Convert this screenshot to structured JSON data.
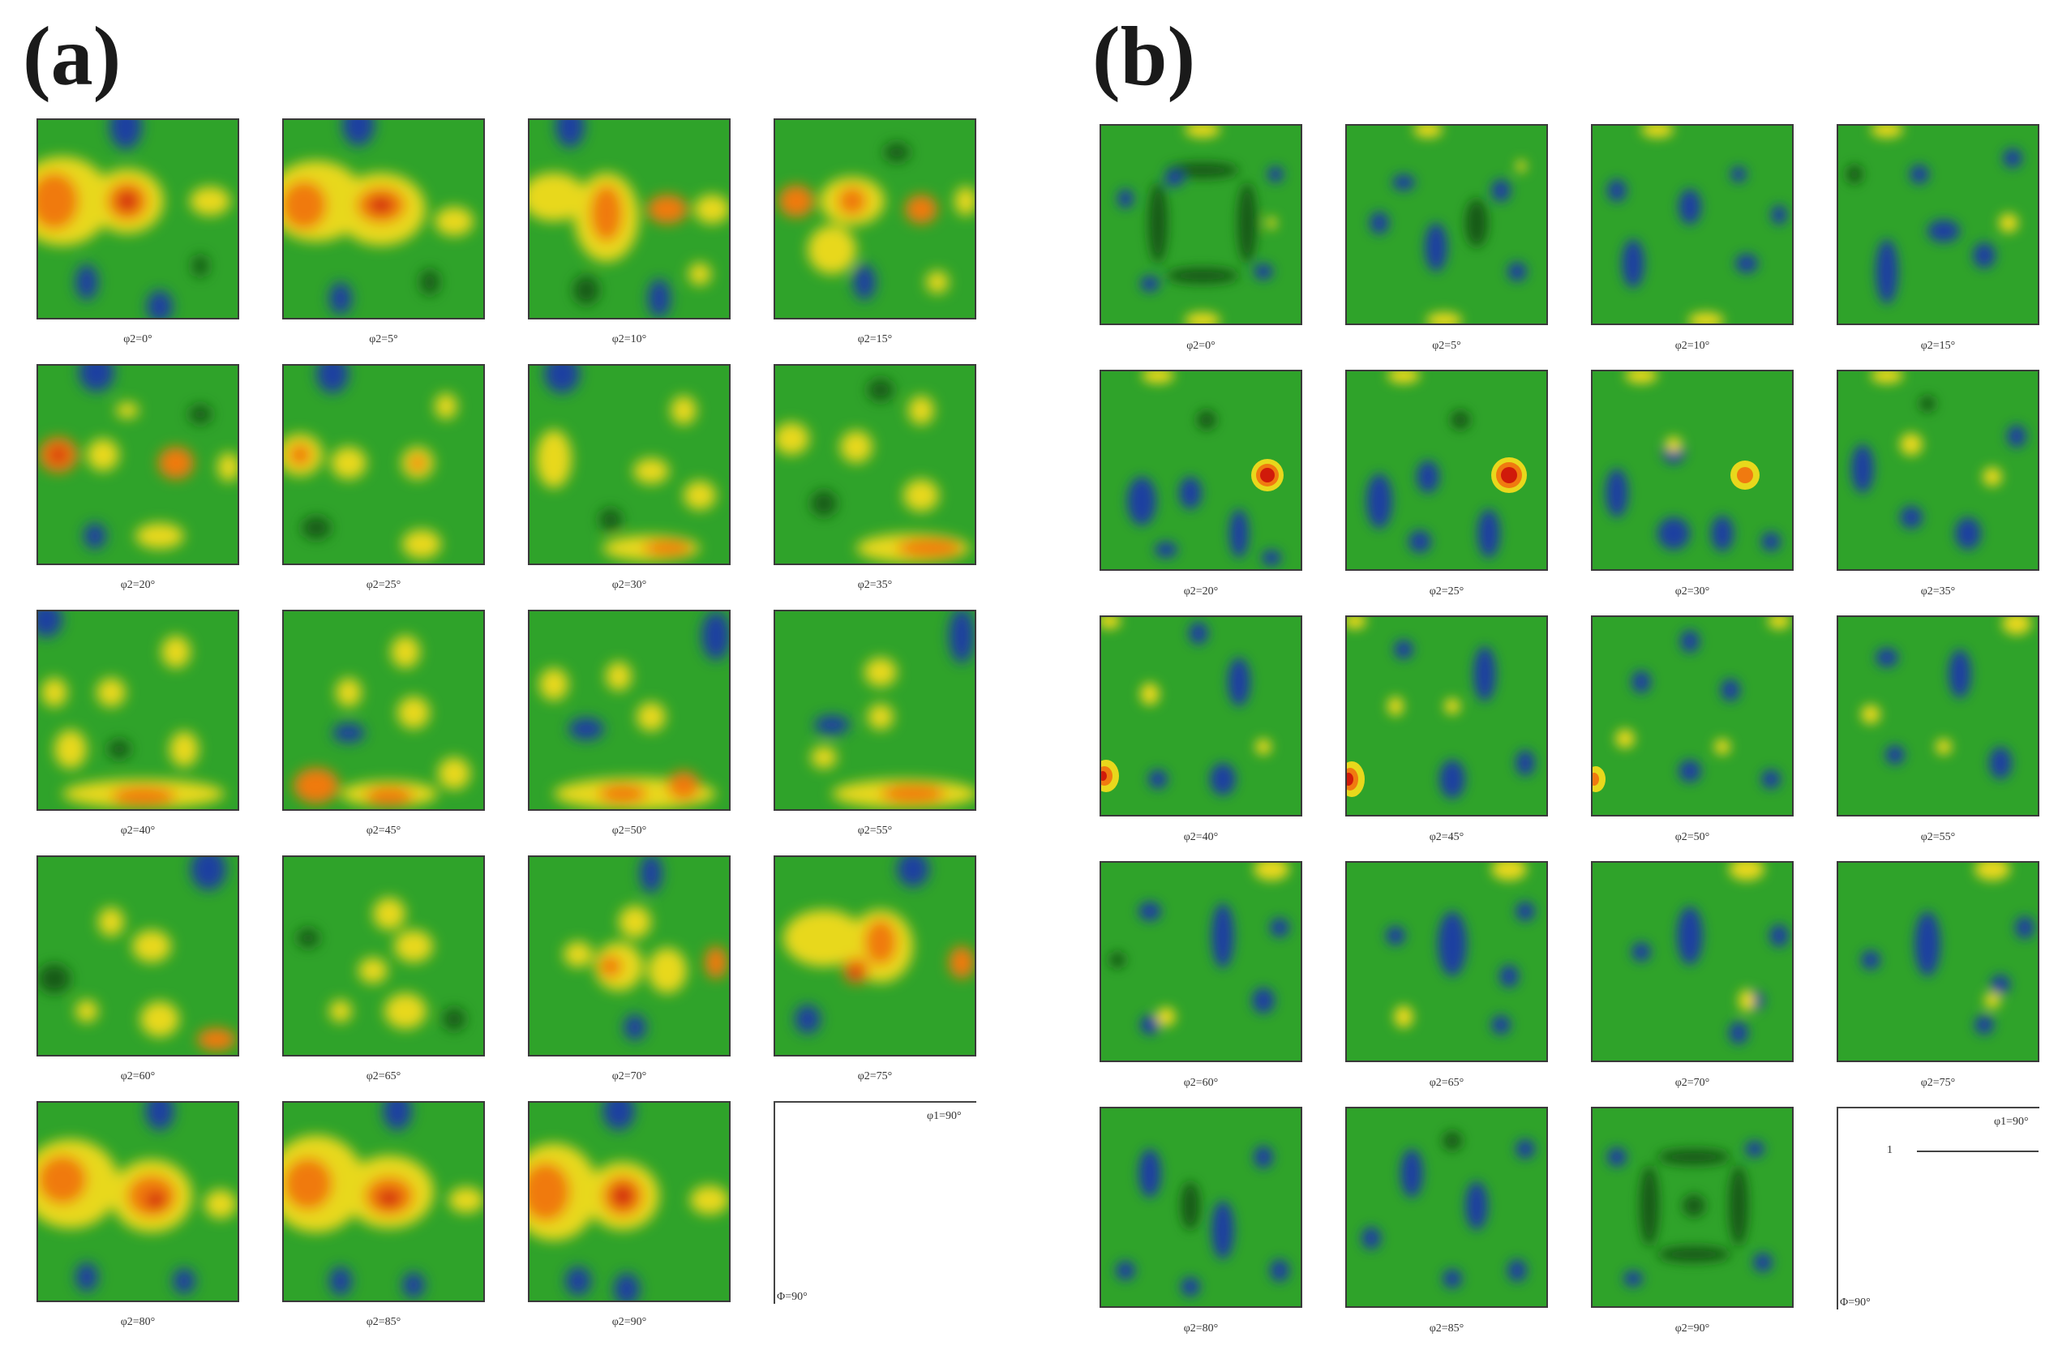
{
  "panel_a": {
    "label": "(a)",
    "captions": [
      "φ2=0°",
      "φ2=5°",
      "φ2=10°",
      "φ2=15°",
      "φ2=20°",
      "φ2=25°",
      "φ2=30°",
      "φ2=35°",
      "φ2=40°",
      "φ2=45°",
      "φ2=50°",
      "φ2=55°",
      "φ2=60°",
      "φ2=65°",
      "φ2=70°",
      "φ2=75°",
      "φ2=80°",
      "φ2=85°",
      "φ2=90°"
    ],
    "key": {
      "phi1": "φ1=90°",
      "phi": "Φ=90°"
    }
  },
  "panel_b": {
    "label": "(b)",
    "captions": [
      "φ2=0°",
      "φ2=5°",
      "φ2=10°",
      "φ2=15°",
      "φ2=20°",
      "φ2=25°",
      "φ2=30°",
      "φ2=35°",
      "φ2=40°",
      "φ2=45°",
      "φ2=50°",
      "φ2=55°",
      "φ2=60°",
      "φ2=65°",
      "φ2=70°",
      "φ2=75°",
      "φ2=80°",
      "φ2=85°",
      "φ2=90°"
    ],
    "key": {
      "phi1": "φ1=90°",
      "phi": "Φ=90°",
      "legend_value": "1"
    }
  },
  "colors": {
    "background_green": "#2fa32a",
    "low_blue": "#1f3fa0",
    "mid_yellow": "#e8d81c",
    "high_orange": "#f07a10",
    "peak_red": "#d01a0a"
  }
}
